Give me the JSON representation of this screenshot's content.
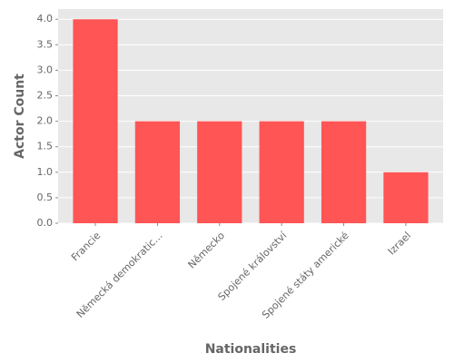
{
  "chart_data": {
    "type": "bar",
    "x_label": "Nationalities",
    "y_label": "Actor Count",
    "categories": [
      "Francie",
      "Německá demokratic…",
      "Německo",
      "Spojené království",
      "Spojené státy americké",
      "Izrael"
    ],
    "values": [
      4,
      2,
      2,
      2,
      2,
      1
    ],
    "color": "#ff5555",
    "ylim": [
      0,
      4.2
    ],
    "yticks": [
      {
        "value": 0,
        "label": "0.0"
      },
      0.5,
      {
        "value": 1,
        "label": "1.0"
      },
      1.5,
      {
        "value": 2,
        "label": "2.0"
      },
      2.5,
      {
        "value": 3,
        "label": "3.0"
      },
      3.5,
      {
        "value": 4,
        "label": "4.0"
      }
    ],
    "grid": true
  }
}
